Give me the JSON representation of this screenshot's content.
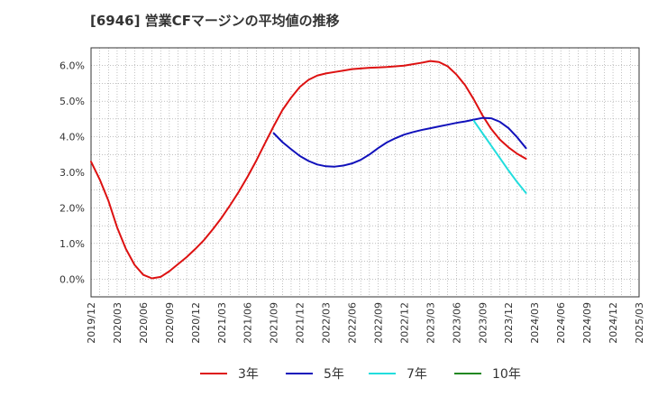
{
  "title": "[6946]  営業CFマージンの平均値の推移",
  "chart_data": {
    "type": "line",
    "title": "[6946]  営業CFマージンの平均値の推移",
    "xlabel": "",
    "ylabel": "",
    "x_ticks": [
      "2019/12",
      "2020/03",
      "2020/06",
      "2020/09",
      "2020/12",
      "2021/03",
      "2021/06",
      "2021/09",
      "2021/12",
      "2022/03",
      "2022/06",
      "2022/09",
      "2022/12",
      "2023/03",
      "2023/06",
      "2023/09",
      "2023/12",
      "2024/03",
      "2024/06",
      "2024/09",
      "2024/12",
      "2025/03"
    ],
    "y_ticks": [
      "0.0%",
      "1.0%",
      "2.0%",
      "3.0%",
      "4.0%",
      "5.0%",
      "6.0%"
    ],
    "ylim": [
      -0.5,
      6.5
    ],
    "grid": true,
    "legend_position": "bottom",
    "series": [
      {
        "name": "3年",
        "color": "#dd1111",
        "points": [
          [
            "2019/12",
            3.3
          ],
          [
            "2020/01",
            2.8
          ],
          [
            "2020/02",
            2.2
          ],
          [
            "2020/03",
            1.45
          ],
          [
            "2020/04",
            0.85
          ],
          [
            "2020/05",
            0.4
          ],
          [
            "2020/06",
            0.12
          ],
          [
            "2020/07",
            0.02
          ],
          [
            "2020/08",
            0.06
          ],
          [
            "2020/09",
            0.22
          ],
          [
            "2020/10",
            0.42
          ],
          [
            "2020/11",
            0.62
          ],
          [
            "2020/12",
            0.85
          ],
          [
            "2021/01",
            1.1
          ],
          [
            "2021/02",
            1.4
          ],
          [
            "2021/03",
            1.72
          ],
          [
            "2021/04",
            2.08
          ],
          [
            "2021/05",
            2.46
          ],
          [
            "2021/06",
            2.88
          ],
          [
            "2021/07",
            3.33
          ],
          [
            "2021/08",
            3.82
          ],
          [
            "2021/09",
            4.3
          ],
          [
            "2021/10",
            4.75
          ],
          [
            "2021/11",
            5.1
          ],
          [
            "2021/12",
            5.4
          ],
          [
            "2022/01",
            5.6
          ],
          [
            "2022/02",
            5.72
          ],
          [
            "2022/03",
            5.78
          ],
          [
            "2022/04",
            5.82
          ],
          [
            "2022/05",
            5.86
          ],
          [
            "2022/06",
            5.9
          ],
          [
            "2022/07",
            5.92
          ],
          [
            "2022/08",
            5.94
          ],
          [
            "2022/09",
            5.95
          ],
          [
            "2022/10",
            5.96
          ],
          [
            "2022/11",
            5.98
          ],
          [
            "2022/12",
            6.0
          ],
          [
            "2023/01",
            6.04
          ],
          [
            "2023/02",
            6.08
          ],
          [
            "2023/03",
            6.13
          ],
          [
            "2023/04",
            6.1
          ],
          [
            "2023/05",
            5.98
          ],
          [
            "2023/06",
            5.75
          ],
          [
            "2023/07",
            5.45
          ],
          [
            "2023/08",
            5.05
          ],
          [
            "2023/09",
            4.6
          ],
          [
            "2023/10",
            4.22
          ],
          [
            "2023/11",
            3.92
          ],
          [
            "2023/12",
            3.7
          ],
          [
            "2024/01",
            3.52
          ],
          [
            "2024/02",
            3.38
          ]
        ]
      },
      {
        "name": "5年",
        "color": "#1111bb",
        "points": [
          [
            "2021/09",
            4.1
          ],
          [
            "2021/10",
            3.85
          ],
          [
            "2021/11",
            3.65
          ],
          [
            "2021/12",
            3.46
          ],
          [
            "2022/01",
            3.32
          ],
          [
            "2022/02",
            3.22
          ],
          [
            "2022/03",
            3.17
          ],
          [
            "2022/04",
            3.16
          ],
          [
            "2022/05",
            3.19
          ],
          [
            "2022/06",
            3.25
          ],
          [
            "2022/07",
            3.35
          ],
          [
            "2022/08",
            3.5
          ],
          [
            "2022/09",
            3.68
          ],
          [
            "2022/10",
            3.84
          ],
          [
            "2022/11",
            3.96
          ],
          [
            "2022/12",
            4.06
          ],
          [
            "2023/01",
            4.13
          ],
          [
            "2023/02",
            4.19
          ],
          [
            "2023/03",
            4.24
          ],
          [
            "2023/04",
            4.29
          ],
          [
            "2023/05",
            4.34
          ],
          [
            "2023/06",
            4.39
          ],
          [
            "2023/07",
            4.43
          ],
          [
            "2023/08",
            4.48
          ],
          [
            "2023/09",
            4.53
          ],
          [
            "2023/10",
            4.52
          ],
          [
            "2023/11",
            4.42
          ],
          [
            "2023/12",
            4.24
          ],
          [
            "2024/01",
            3.98
          ],
          [
            "2024/02",
            3.68
          ]
        ]
      },
      {
        "name": "7年",
        "color": "#22dddd",
        "points": [
          [
            "2023/08",
            4.45
          ],
          [
            "2023/09",
            4.1
          ],
          [
            "2023/10",
            3.75
          ],
          [
            "2023/11",
            3.4
          ],
          [
            "2023/12",
            3.05
          ],
          [
            "2024/01",
            2.72
          ],
          [
            "2024/02",
            2.42
          ]
        ]
      },
      {
        "name": "10年",
        "color": "#228822",
        "points": []
      }
    ]
  }
}
